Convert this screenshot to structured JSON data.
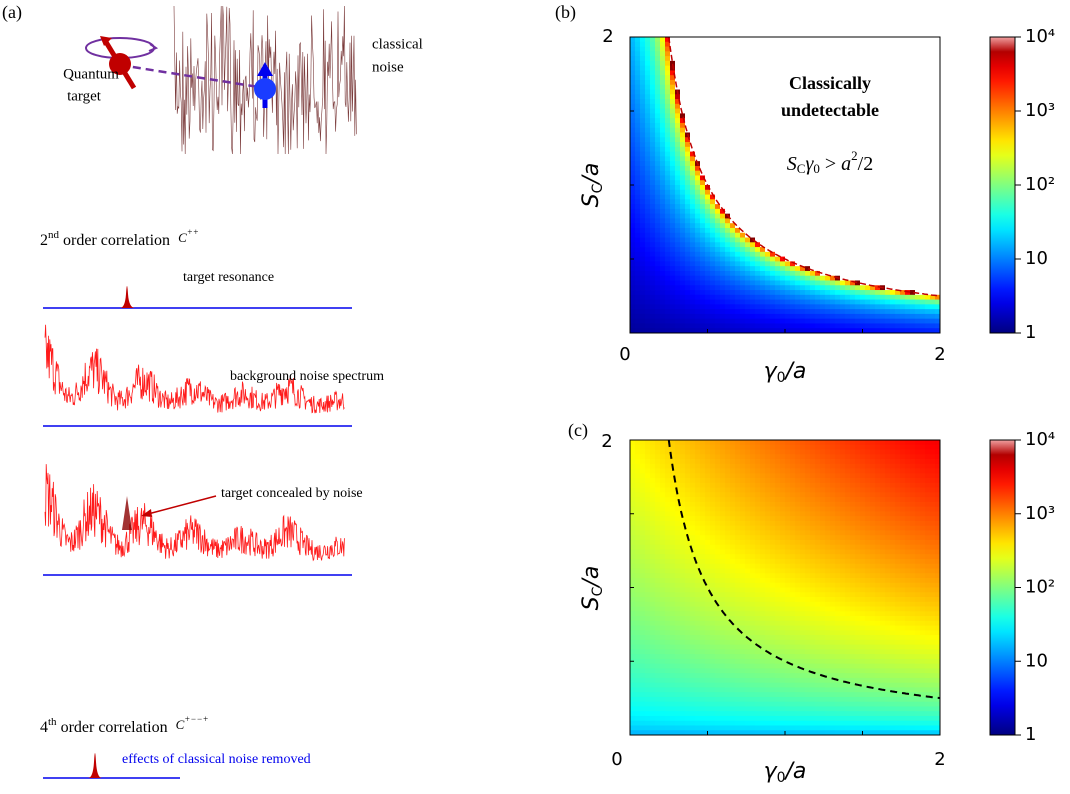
{
  "panel_a": {
    "label": "(a)",
    "quantum_target": [
      "Quantum",
      "target"
    ],
    "classical_noise": [
      "classical",
      "noise"
    ],
    "second_order": {
      "number": "2",
      "suffix": "nd",
      "text": " order correlation",
      "symbol": "C",
      "symbol_sup": "++"
    },
    "target_resonance": "target resonance",
    "background_noise": "background noise spectrum",
    "target_concealed": "target concealed by noise",
    "fourth_order": {
      "number": "4",
      "suffix": "th",
      "text": " order correlation",
      "symbol": "C",
      "symbol_sup": "+−−+"
    },
    "noise_removed": "effects of classical noise removed"
  },
  "chart_data": [
    {
      "type": "heatmap",
      "panel_label": "(b)",
      "xlabel": {
        "var": "γ",
        "sub": "0",
        "rest": "/a"
      },
      "ylabel": {
        "var": "S",
        "sub": "C",
        "rest": "/a"
      },
      "xlim": [
        0,
        2
      ],
      "ylim": [
        0,
        2
      ],
      "xticks": [
        0,
        2
      ],
      "xminor_ticks": [
        0.5,
        1,
        1.5
      ],
      "yticks": [
        2
      ],
      "yminor_ticks": [
        0,
        0.5,
        1,
        1.5
      ],
      "clim": [
        1,
        10000
      ],
      "color_scale": "log",
      "cticks": [
        1,
        10,
        {
          "value": 100,
          "label": "10²"
        },
        {
          "value": 1000,
          "label": "10³"
        },
        {
          "value": 10000,
          "label": "10⁴"
        }
      ],
      "annotation": [
        "Classically",
        "undetectable"
      ],
      "equation": {
        "s": "S",
        "s_sub": "C",
        "g": "γ",
        "g_sub": "0",
        "mid": " > ",
        "a": "a",
        "a_sup": "2",
        "tail": "/2"
      }
    },
    {
      "type": "heatmap",
      "panel_label": "(c)",
      "xlabel": {
        "var": "γ",
        "sub": "0",
        "rest": "/a"
      },
      "ylabel": {
        "var": "S",
        "sub": "C",
        "rest": "/a"
      },
      "xlim": [
        0,
        2
      ],
      "ylim": [
        0,
        2
      ],
      "xticks": [
        0,
        2
      ],
      "xminor_ticks": [
        0.5,
        1,
        1.5
      ],
      "yticks": [
        2
      ],
      "yminor_ticks": [
        0,
        0.5,
        1,
        1.5
      ],
      "clim": [
        1,
        10000
      ],
      "color_scale": "log",
      "cticks": [
        1,
        10,
        {
          "value": 100,
          "label": "10²"
        },
        {
          "value": 1000,
          "label": "10³"
        },
        {
          "value": 10000,
          "label": "10⁴"
        }
      ]
    }
  ]
}
